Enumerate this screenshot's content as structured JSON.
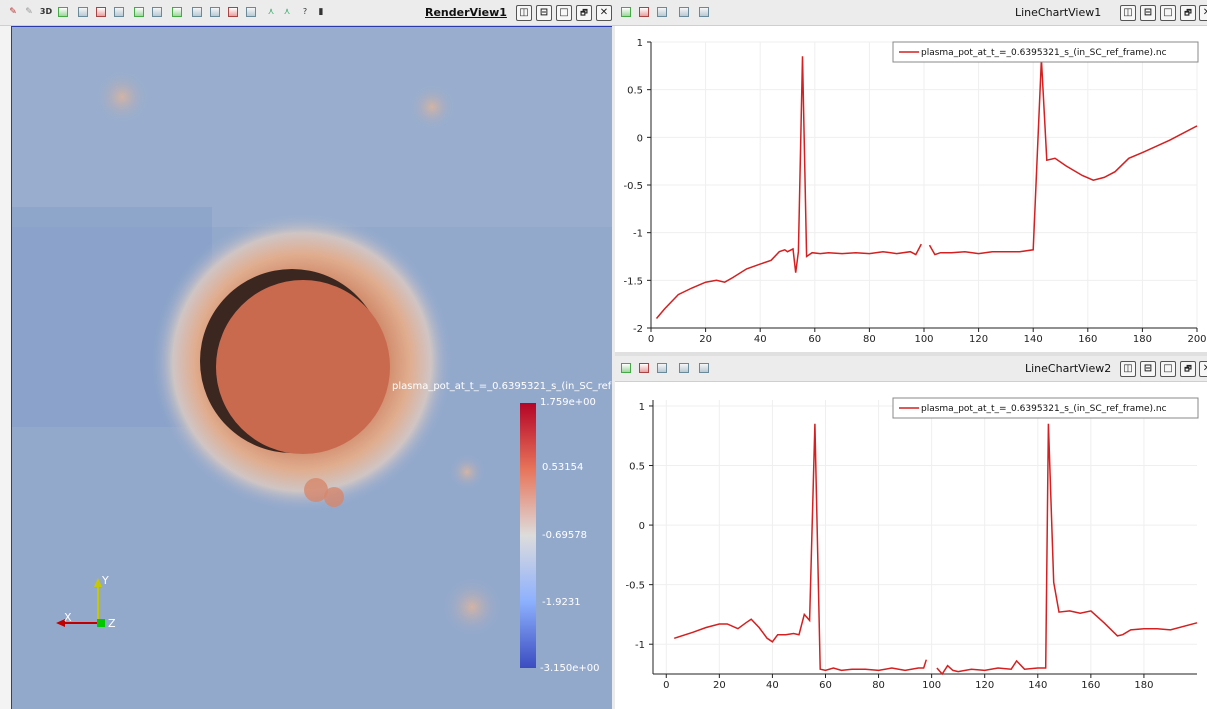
{
  "render_view": {
    "title": "RenderView1",
    "toolbar_icons": [
      "pick-icon",
      "select-icon",
      "3d-toggle",
      "camera-icon",
      "select-cells-icon",
      "select-points-icon",
      "frustum-cells-icon",
      "frustum-points-icon",
      "polygon-cells-icon",
      "polygon-points-icon",
      "interactive-select-icon",
      "grow-selection-icon",
      "shrink-selection-icon",
      "clear-selection-icon",
      "hover-points-icon",
      "hover-cells-icon",
      "help-icon",
      "trash-icon"
    ],
    "toggle_3d_label": "3D",
    "help_label": "?",
    "colorbar": {
      "title": "plasma_pot_at_t_=_0.6395321_s_(in_SC_ref",
      "labels": [
        "1.759e+00",
        "0.53154",
        "-0.69578",
        "-1.9231",
        "-3.150e+00"
      ]
    },
    "axes": {
      "x": "X",
      "y": "Y",
      "z": "Z"
    },
    "colors": {
      "background": "#93a9cc",
      "sphere": "#c96a4f",
      "shadow": "#3a2620",
      "axis_x": "#c00000",
      "axis_y": "#c8c800",
      "axis_z": "#00c800"
    }
  },
  "charts": [
    {
      "title": "LineChartView1",
      "legend": "plasma_pot_at_t_=_0.6395321_s_(in_SC_ref_frame).nc",
      "chart_data": {
        "type": "line",
        "xlim": [
          0,
          200
        ],
        "ylim": [
          -2,
          1
        ],
        "x_ticks": [
          0,
          20,
          40,
          60,
          80,
          100,
          120,
          140,
          160,
          180,
          200
        ],
        "y_ticks": [
          1,
          0.5,
          0,
          -0.5,
          -1,
          -1.5,
          -2
        ],
        "y_tick_labels": [
          "1",
          "0.5",
          "0",
          "-0.5",
          "-1",
          "-1.5",
          "-2"
        ],
        "series": [
          {
            "name": "plasma_pot_at_t_=_0.6395321_s_(in_SC_ref_frame).nc",
            "color": "#d42020",
            "segments": [
              [
                [
                  2,
                  -1.9
                ],
                [
                  5,
                  -1.8
                ],
                [
                  10,
                  -1.65
                ],
                [
                  15,
                  -1.58
                ],
                [
                  20,
                  -1.52
                ],
                [
                  24,
                  -1.5
                ],
                [
                  27,
                  -1.52
                ],
                [
                  30,
                  -1.47
                ],
                [
                  35,
                  -1.38
                ],
                [
                  40,
                  -1.33
                ],
                [
                  44,
                  -1.29
                ],
                [
                  47,
                  -1.2
                ],
                [
                  49,
                  -1.18
                ],
                [
                  50,
                  -1.2
                ],
                [
                  52,
                  -1.17
                ],
                [
                  53,
                  -1.42
                ],
                [
                  54,
                  -1.2
                ],
                [
                  55.5,
                  0.85
                ],
                [
                  57,
                  -1.25
                ],
                [
                  59,
                  -1.21
                ],
                [
                  62,
                  -1.22
                ],
                [
                  65,
                  -1.21
                ],
                [
                  70,
                  -1.22
                ],
                [
                  75,
                  -1.21
                ],
                [
                  80,
                  -1.22
                ],
                [
                  85,
                  -1.2
                ],
                [
                  90,
                  -1.22
                ],
                [
                  95,
                  -1.2
                ],
                [
                  97,
                  -1.23
                ],
                [
                  99,
                  -1.12
                ]
              ],
              [
                [
                  102,
                  -1.13
                ],
                [
                  104,
                  -1.23
                ],
                [
                  106,
                  -1.21
                ],
                [
                  110,
                  -1.21
                ],
                [
                  115,
                  -1.2
                ],
                [
                  120,
                  -1.22
                ],
                [
                  125,
                  -1.2
                ],
                [
                  130,
                  -1.2
                ],
                [
                  135,
                  -1.2
                ],
                [
                  140,
                  -1.18
                ],
                [
                  143,
                  0.82
                ],
                [
                  145,
                  -0.24
                ],
                [
                  148,
                  -0.22
                ],
                [
                  152,
                  -0.3
                ],
                [
                  158,
                  -0.4
                ],
                [
                  162,
                  -0.45
                ],
                [
                  166,
                  -0.42
                ],
                [
                  170,
                  -0.36
                ],
                [
                  175,
                  -0.22
                ],
                [
                  180,
                  -0.16
                ],
                [
                  190,
                  -0.03
                ],
                [
                  200,
                  0.12
                ]
              ]
            ]
          }
        ]
      }
    },
    {
      "title": "LineChartView2",
      "legend": "plasma_pot_at_t_=_0.6395321_s_(in_SC_ref_frame).nc",
      "chart_data": {
        "type": "line",
        "xlim": [
          -5,
          200
        ],
        "ylim": [
          -1.25,
          1.05
        ],
        "x_ticks": [
          0,
          20,
          40,
          60,
          80,
          100,
          120,
          140,
          160,
          180
        ],
        "y_ticks": [
          1,
          0.5,
          0,
          -0.5,
          -1
        ],
        "y_tick_labels": [
          "1",
          "0.5",
          "0",
          "-0.5",
          "-1"
        ],
        "series": [
          {
            "name": "plasma_pot_at_t_=_0.6395321_s_(in_SC_ref_frame).nc",
            "color": "#d42020",
            "segments": [
              [
                [
                  3,
                  -0.95
                ],
                [
                  10,
                  -0.9
                ],
                [
                  15,
                  -0.86
                ],
                [
                  20,
                  -0.83
                ],
                [
                  23,
                  -0.83
                ],
                [
                  27,
                  -0.87
                ],
                [
                  30,
                  -0.82
                ],
                [
                  32,
                  -0.79
                ],
                [
                  35,
                  -0.86
                ],
                [
                  38,
                  -0.95
                ],
                [
                  40,
                  -0.98
                ],
                [
                  42,
                  -0.92
                ],
                [
                  45,
                  -0.92
                ],
                [
                  48,
                  -0.91
                ],
                [
                  50,
                  -0.92
                ],
                [
                  52,
                  -0.75
                ],
                [
                  54,
                  -0.8
                ],
                [
                  56,
                  0.85
                ],
                [
                  58,
                  -1.21
                ],
                [
                  60,
                  -1.22
                ],
                [
                  63,
                  -1.2
                ],
                [
                  66,
                  -1.22
                ],
                [
                  70,
                  -1.21
                ],
                [
                  75,
                  -1.21
                ],
                [
                  80,
                  -1.22
                ],
                [
                  85,
                  -1.2
                ],
                [
                  90,
                  -1.22
                ],
                [
                  95,
                  -1.2
                ],
                [
                  97,
                  -1.2
                ],
                [
                  98,
                  -1.13
                ]
              ],
              [
                [
                  102,
                  -1.2
                ],
                [
                  104,
                  -1.25
                ],
                [
                  106,
                  -1.18
                ],
                [
                  108,
                  -1.22
                ],
                [
                  110,
                  -1.23
                ],
                [
                  115,
                  -1.21
                ],
                [
                  120,
                  -1.22
                ],
                [
                  125,
                  -1.2
                ],
                [
                  130,
                  -1.21
                ],
                [
                  132,
                  -1.14
                ],
                [
                  135,
                  -1.21
                ],
                [
                  140,
                  -1.2
                ],
                [
                  143,
                  -1.2
                ],
                [
                  144,
                  0.85
                ],
                [
                  146,
                  -0.48
                ],
                [
                  148,
                  -0.73
                ],
                [
                  152,
                  -0.72
                ],
                [
                  156,
                  -0.74
                ],
                [
                  160,
                  -0.72
                ],
                [
                  165,
                  -0.82
                ],
                [
                  170,
                  -0.93
                ],
                [
                  172,
                  -0.92
                ],
                [
                  175,
                  -0.88
                ],
                [
                  180,
                  -0.87
                ],
                [
                  185,
                  -0.87
                ],
                [
                  190,
                  -0.88
                ],
                [
                  200,
                  -0.82
                ]
              ]
            ]
          }
        ]
      }
    }
  ],
  "view_buttons": [
    "split-horizontal",
    "split-vertical",
    "maximize",
    "restore",
    "close"
  ],
  "close_label": "✕",
  "restore_label": "🗗"
}
